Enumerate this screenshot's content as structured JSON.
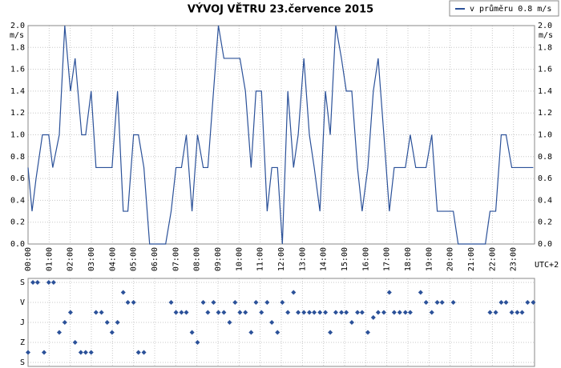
{
  "chart_data": [
    {
      "type": "line",
      "title": "VÝVOJ VĚTRU  23.července 2015",
      "ylabel": "m/s",
      "xlabel": "UTC+2",
      "xlim": [
        0,
        24
      ],
      "xticks": [
        {
          "value": 0,
          "label": "00:00"
        },
        {
          "value": 1,
          "label": "01:00"
        },
        {
          "value": 2,
          "label": "02:00"
        },
        {
          "value": 3,
          "label": "03:00"
        },
        {
          "value": 4,
          "label": "04:00"
        },
        {
          "value": 5,
          "label": "05:00"
        },
        {
          "value": 6,
          "label": "06:00"
        },
        {
          "value": 7,
          "label": "07:00"
        },
        {
          "value": 8,
          "label": "08:00"
        },
        {
          "value": 9,
          "label": "09:00"
        },
        {
          "value": 10,
          "label": "10:00"
        },
        {
          "value": 11,
          "label": "11:00"
        },
        {
          "value": 12,
          "label": "12:00"
        },
        {
          "value": 13,
          "label": "13:00"
        },
        {
          "value": 14,
          "label": "14:00"
        },
        {
          "value": 15,
          "label": "15:00"
        },
        {
          "value": 16,
          "label": "16:00"
        },
        {
          "value": 17,
          "label": "17:00"
        },
        {
          "value": 18,
          "label": "18:00"
        },
        {
          "value": 19,
          "label": "19:00"
        },
        {
          "value": 20,
          "label": "20:00"
        },
        {
          "value": 21,
          "label": "21:00"
        },
        {
          "value": 22,
          "label": "22:00"
        },
        {
          "value": 23,
          "label": "23:00"
        }
      ],
      "ylim": [
        0,
        2
      ],
      "yticks": [
        {
          "value": 0,
          "label": "0.0"
        },
        0.2,
        0.4,
        0.6,
        0.8,
        {
          "value": 1,
          "label": "1.0"
        },
        1.2,
        1.4,
        1.6,
        1.8,
        {
          "value": 2,
          "label": "2.0"
        }
      ],
      "grid": true,
      "legend": "top-right",
      "series": [
        {
          "name": "v průměru 0.8 m/s",
          "color": "#2b5199",
          "x": [
            0,
            0.19,
            0.38,
            0.68,
            0.98,
            1.17,
            1.48,
            1.74,
            2.01,
            2.23,
            2.54,
            2.73,
            2.99,
            3.22,
            3.98,
            4.24,
            4.51,
            4.73,
            5.0,
            5.23,
            5.49,
            5.76,
            6.52,
            6.78,
            7.01,
            7.27,
            7.5,
            7.77,
            8.03,
            8.3,
            8.52,
            9.02,
            9.28,
            10.04,
            10.3,
            10.57,
            10.8,
            11.06,
            11.33,
            11.55,
            11.82,
            12.05,
            12.31,
            12.58,
            12.8,
            13.07,
            13.33,
            13.56,
            13.83,
            14.09,
            14.32,
            14.58,
            14.85,
            15.08,
            15.34,
            15.61,
            15.83,
            16.1,
            16.36,
            16.59,
            16.86,
            17.12,
            17.35,
            17.88,
            18.11,
            18.37,
            18.86,
            19.13,
            19.39,
            20.15,
            20.38,
            21.67,
            21.89,
            22.16,
            22.42,
            22.65,
            22.92,
            23.94
          ],
          "values": [
            0.7,
            0.3,
            0.6,
            1.0,
            1.0,
            0.7,
            1.0,
            2.0,
            1.4,
            1.7,
            1.0,
            1.0,
            1.4,
            0.7,
            0.7,
            1.4,
            0.3,
            0.3,
            1.0,
            1.0,
            0.7,
            0.0,
            0.0,
            0.3,
            0.7,
            0.7,
            1.0,
            0.3,
            1.0,
            0.7,
            0.7,
            2.0,
            1.7,
            1.7,
            1.4,
            0.7,
            1.4,
            1.4,
            0.3,
            0.7,
            0.7,
            0.0,
            1.4,
            0.7,
            1.0,
            1.7,
            1.0,
            0.7,
            0.3,
            1.4,
            1.0,
            2.0,
            1.7,
            1.4,
            1.4,
            0.7,
            0.3,
            0.7,
            1.4,
            1.7,
            1.0,
            0.3,
            0.7,
            0.7,
            1.0,
            0.7,
            0.7,
            1.0,
            0.3,
            0.3,
            0.0,
            0.0,
            0.3,
            0.3,
            1.0,
            1.0,
            0.7,
            0.7
          ]
        }
      ]
    },
    {
      "type": "scatter",
      "xlim": [
        0,
        24
      ],
      "ylim": [
        0,
        360
      ],
      "yticks": [
        {
          "value": 0,
          "label": "S"
        },
        {
          "value": 90,
          "label": "V"
        },
        {
          "value": 180,
          "label": "J"
        },
        {
          "value": 270,
          "label": "Z"
        },
        {
          "value": 360,
          "label": "S"
        }
      ],
      "color": "#2b5199",
      "x": [
        0,
        0.23,
        0.45,
        0.76,
        0.98,
        1.21,
        1.48,
        1.74,
        2.01,
        2.23,
        2.5,
        2.73,
        2.99,
        3.22,
        3.48,
        3.75,
        3.98,
        4.24,
        4.51,
        4.73,
        5.0,
        5.23,
        5.49,
        6.78,
        7.01,
        7.27,
        7.5,
        7.77,
        8.03,
        8.3,
        8.52,
        8.79,
        9.02,
        9.28,
        9.55,
        9.81,
        10.04,
        10.3,
        10.57,
        10.8,
        11.06,
        11.33,
        11.55,
        11.82,
        12.05,
        12.31,
        12.58,
        12.8,
        13.07,
        13.33,
        13.56,
        13.83,
        14.09,
        14.32,
        14.58,
        14.85,
        15.08,
        15.34,
        15.61,
        15.83,
        16.1,
        16.36,
        16.59,
        16.86,
        17.12,
        17.35,
        17.61,
        17.88,
        18.11,
        18.6,
        18.86,
        19.13,
        19.39,
        19.62,
        20.15,
        21.89,
        22.16,
        22.42,
        22.65,
        22.92,
        23.18,
        23.41,
        23.67,
        23.94
      ],
      "values": [
        315,
        0,
        0,
        315,
        0,
        0,
        225,
        180,
        135,
        270,
        315,
        315,
        315,
        135,
        135,
        180,
        225,
        180,
        45,
        90,
        90,
        315,
        315,
        90,
        135,
        135,
        135,
        225,
        270,
        90,
        135,
        90,
        135,
        135,
        180,
        90,
        135,
        135,
        225,
        90,
        135,
        90,
        180,
        225,
        90,
        135,
        45,
        135,
        135,
        135,
        135,
        135,
        135,
        225,
        135,
        135,
        135,
        180,
        135,
        135,
        225,
        158,
        135,
        135,
        45,
        135,
        135,
        135,
        135,
        45,
        90,
        135,
        90,
        90,
        90,
        135,
        135,
        90,
        90,
        135,
        135,
        135,
        90,
        90
      ]
    }
  ]
}
